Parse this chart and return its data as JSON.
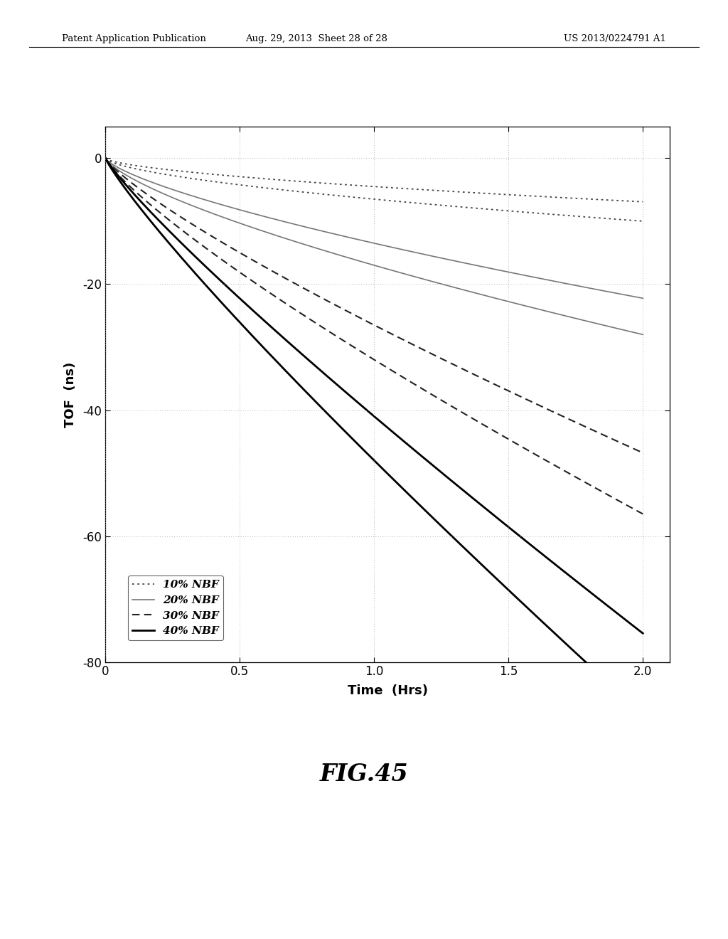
{
  "title": "",
  "xlabel": "Time  (Hrs)",
  "ylabel": "TOF  (ns)",
  "xlim": [
    0,
    2.1
  ],
  "ylim": [
    -80,
    5
  ],
  "xticks": [
    0,
    0.5,
    1.0,
    1.5,
    2.0
  ],
  "yticks": [
    0,
    -20,
    -40,
    -60,
    -80
  ],
  "xtick_labels": [
    "0",
    "0.5",
    "1.0",
    "1.5",
    "2.0"
  ],
  "ytick_labels": [
    "0",
    "-20",
    "-40",
    "-60",
    "-80"
  ],
  "curves": [
    {
      "label": "10% NBF lower",
      "linestyle": "dotted",
      "color": "#444444",
      "linewidth": 1.3,
      "rate": 6.5,
      "power": 0.62
    },
    {
      "label": "10% NBF upper",
      "linestyle": "dotted",
      "color": "#444444",
      "linewidth": 1.3,
      "rate": 4.5,
      "power": 0.62
    },
    {
      "label": "20% NBF lower",
      "linestyle": "solid",
      "color": "#777777",
      "linewidth": 1.2,
      "rate": 17.0,
      "power": 0.72
    },
    {
      "label": "20% NBF upper",
      "linestyle": "solid",
      "color": "#777777",
      "linewidth": 1.2,
      "rate": 13.5,
      "power": 0.72
    },
    {
      "label": "30% NBF lower",
      "linestyle": "dashed",
      "color": "#222222",
      "linewidth": 1.5,
      "rate": 32.0,
      "power": 0.82
    },
    {
      "label": "30% NBF upper",
      "linestyle": "dashed",
      "color": "#222222",
      "linewidth": 1.5,
      "rate": 26.5,
      "power": 0.82
    },
    {
      "label": "40% NBF lower",
      "linestyle": "solid",
      "color": "#000000",
      "linewidth": 2.0,
      "rate": 48.0,
      "power": 0.88
    },
    {
      "label": "40% NBF upper",
      "linestyle": "solid",
      "color": "#000000",
      "linewidth": 2.0,
      "rate": 41.0,
      "power": 0.88
    }
  ],
  "legend_entries": [
    {
      "label": "10% NBF",
      "linestyle": "dotted",
      "color": "#444444",
      "linewidth": 1.3
    },
    {
      "label": "20% NBF",
      "linestyle": "solid",
      "color": "#777777",
      "linewidth": 1.2
    },
    {
      "label": "30% NBF",
      "linestyle": "dashed",
      "color": "#222222",
      "linewidth": 1.5
    },
    {
      "label": "40% NBF",
      "linestyle": "solid",
      "color": "#000000",
      "linewidth": 2.0
    }
  ],
  "fig_title": "FIG.45",
  "header_left": "Patent Application Publication",
  "header_center": "Aug. 29, 2013  Sheet 28 of 28",
  "header_right": "US 2013/0224791 A1",
  "background_color": "#ffffff"
}
